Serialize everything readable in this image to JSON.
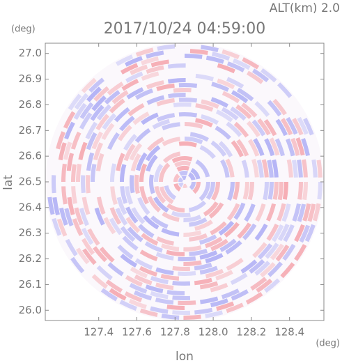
{
  "chart_data": {
    "type": "radar-ppi",
    "title": "2017/10/24 04:59:00",
    "altitude_label": "ALT(km) 2.0",
    "x_label": "lon",
    "x_unit": "(deg)",
    "y_label": "lat",
    "y_unit": "(deg)",
    "xlim": [
      127.12,
      128.58
    ],
    "ylim": [
      25.96,
      27.04
    ],
    "xticks": [
      127.4,
      127.6,
      127.8,
      {
        "value": 128.0,
        "label": "128.0"
      },
      128.2,
      128.4
    ],
    "yticks": [
      {
        "value": 26.0,
        "label": "26.0"
      },
      26.1,
      26.2,
      26.3,
      26.4,
      26.5,
      26.6,
      26.7,
      26.8,
      26.9,
      {
        "value": 27.0,
        "label": "27.0"
      }
    ],
    "colors": {
      "positive": "#f4a0a8",
      "negative": "#a8a8f4"
    }
  }
}
